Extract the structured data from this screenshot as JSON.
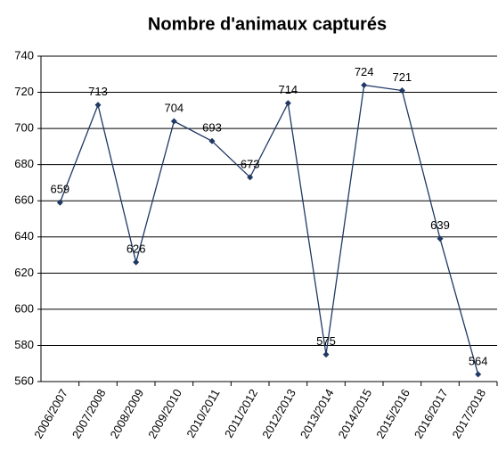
{
  "chart_data": {
    "type": "line",
    "title": "Nombre d'animaux capturés",
    "categories": [
      "2006/2007",
      "2007/2008",
      "2008/2009",
      "2009/2010",
      "2010/2011",
      "2011/2012",
      "2012/2013",
      "2013/2014",
      "2014/2015",
      "2015/2016",
      "2016/2017",
      "2017/2018"
    ],
    "series": [
      {
        "name": "Nombre d'animaux capturés",
        "color": "#1f3864",
        "values": [
          659,
          713,
          626,
          704,
          693,
          673,
          714,
          575,
          724,
          721,
          639,
          564
        ]
      }
    ],
    "ylim": [
      560,
      740
    ],
    "yticks": [
      560,
      580,
      600,
      620,
      640,
      660,
      680,
      700,
      720,
      740
    ],
    "grid": true
  }
}
